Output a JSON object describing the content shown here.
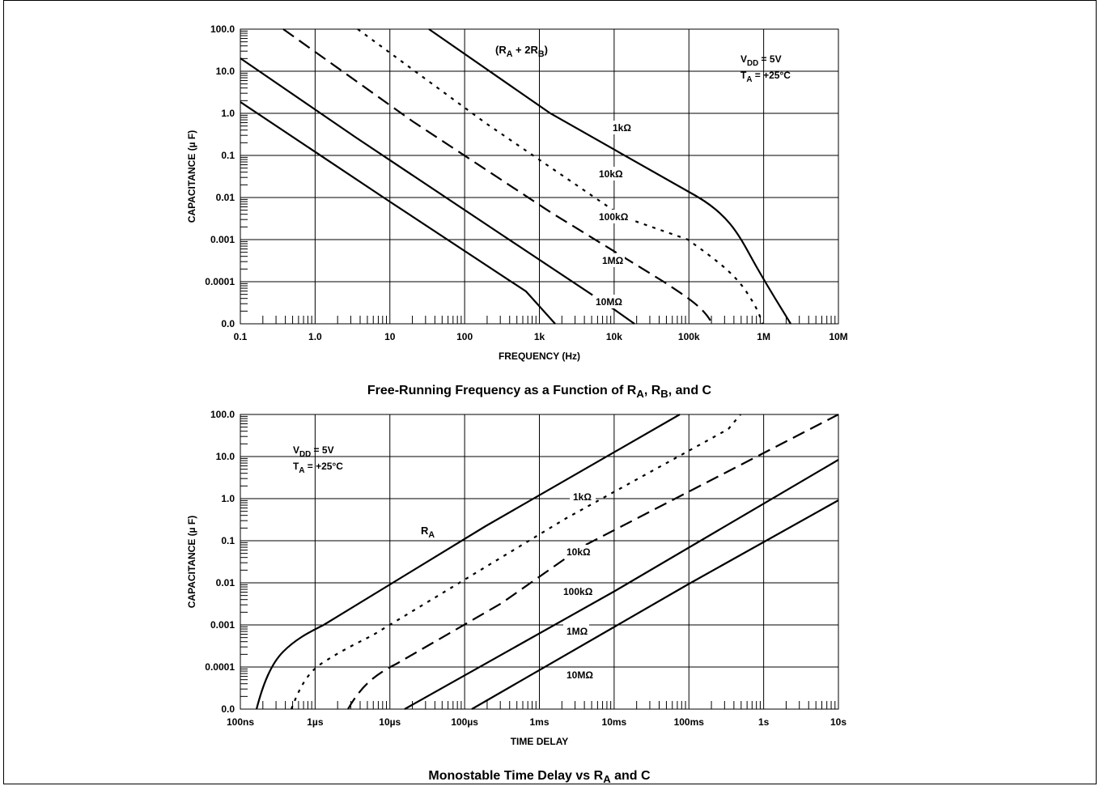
{
  "charts": [
    {
      "type": "line",
      "title": "Free-Running Frequency as a Function of R_A, R_B, and C",
      "title_parts": [
        "Free-Running Frequency as a Function of R",
        "A",
        ", R",
        "B",
        ", and C"
      ],
      "xlabel": "FREQUENCY (Hz)",
      "ylabel": "CAPACITANCE (µ F)",
      "x_scale": "log",
      "x_ticks": [
        "0.1",
        "1.0",
        "10",
        "100",
        "1k",
        "10k",
        "100k",
        "1M",
        "10M"
      ],
      "y_ticks": [
        "100.0",
        "10.0",
        "1.0",
        "0.1",
        "0.01",
        "0.001",
        "0.0001",
        "0.0"
      ],
      "annotations": {
        "group": [
          "(R",
          "A",
          " + 2R",
          "B",
          ")"
        ],
        "conditions": [
          [
            "V",
            "DD",
            " = 5V"
          ],
          [
            "T",
            "A",
            " = +25°C"
          ]
        ]
      },
      "series": [
        {
          "name": "1kΩ",
          "style": "solid"
        },
        {
          "name": "10kΩ",
          "style": "dotted"
        },
        {
          "name": "100kΩ",
          "style": "dashed"
        },
        {
          "name": "1MΩ",
          "style": "solid"
        },
        {
          "name": "10MΩ",
          "style": "solid"
        }
      ]
    },
    {
      "type": "line",
      "title": "Monostable Time Delay vs R_A and C",
      "title_parts": [
        "Monostable Time Delay vs R",
        "A",
        " and C"
      ],
      "xlabel": "TIME DELAY",
      "ylabel": "CAPACITANCE (µ F)",
      "x_scale": "log",
      "x_ticks": [
        "100ns",
        "1µs",
        "10µs",
        "100µs",
        "1ms",
        "10ms",
        "100ms",
        "1s",
        "10s"
      ],
      "y_ticks": [
        "100.0",
        "10.0",
        "1.0",
        "0.1",
        "0.01",
        "0.001",
        "0.0001",
        "0.0"
      ],
      "annotations": {
        "group": [
          "R",
          "A"
        ],
        "conditions": [
          [
            "V",
            "DD",
            " = 5V"
          ],
          [
            "T",
            "A",
            " = +25°C"
          ]
        ]
      },
      "series": [
        {
          "name": "1kΩ",
          "style": "solid"
        },
        {
          "name": "10kΩ",
          "style": "dotted"
        },
        {
          "name": "100kΩ",
          "style": "dashed"
        },
        {
          "name": "1MΩ",
          "style": "solid"
        },
        {
          "name": "10MΩ",
          "style": "solid"
        }
      ]
    }
  ]
}
